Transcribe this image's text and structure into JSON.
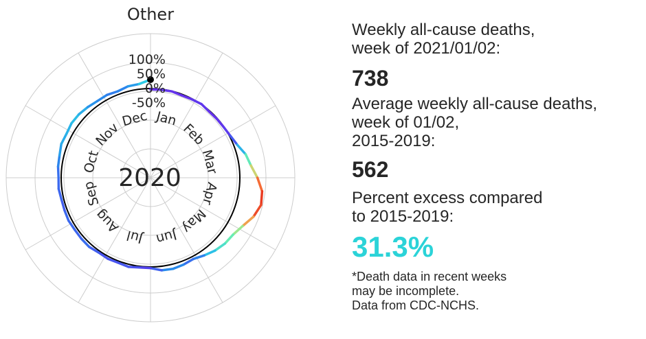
{
  "chart_data": {
    "type": "line",
    "projection": "polar",
    "title": "Other",
    "center_label": "2020",
    "radial_tick_labels": [
      "100%",
      "50%",
      "0%",
      "-50%"
    ],
    "radial_ticks": [
      100,
      50,
      0,
      -50
    ],
    "radial_range": [
      -150,
      150
    ],
    "month_labels": [
      "Jan",
      "Feb",
      "Mar",
      "Apr",
      "May",
      "Jun",
      "Jul",
      "Aug",
      "Sep",
      "Oct",
      "Nov",
      "Dec"
    ],
    "reference_circle": 0,
    "colormap": "rainbow/jet (purple low, cyan mid, red high)",
    "grid": true,
    "series": [
      {
        "x": [
          1,
          2,
          3,
          4,
          5,
          6,
          7,
          8,
          9,
          10,
          11,
          12,
          13,
          14,
          15,
          16,
          17,
          18,
          19,
          20,
          21,
          22,
          23,
          24,
          25,
          26,
          27,
          28,
          29,
          30,
          31,
          32,
          33,
          34,
          35,
          36,
          37,
          38,
          39,
          40,
          41,
          42,
          43,
          44,
          45,
          46,
          47,
          48,
          49,
          50,
          51,
          52,
          53
        ],
        "values": [
          -3,
          -2,
          -1,
          -4,
          -2,
          1,
          -3,
          -2,
          -1,
          3,
          12,
          30,
          41,
          61,
          80,
          85,
          72,
          51,
          38,
          35,
          28,
          18,
          9,
          13,
          16,
          14,
          4,
          4,
          9,
          6,
          8,
          6,
          11,
          10,
          9,
          11,
          9,
          8,
          11,
          9,
          13,
          15,
          21,
          19,
          23,
          22,
          18,
          14,
          15,
          11,
          17,
          18,
          31
        ]
      }
    ]
  },
  "panel": {
    "weekly_label": "Weekly all-cause deaths,\nweek of 2021/01/02:",
    "weekly_value": "738",
    "average_label": "Average weekly all-cause deaths,\nweek of 01/02,\n2015-2019:",
    "average_value": "562",
    "excess_label": "Percent excess compared\nto 2015-2019:",
    "excess_value": "31.3%",
    "excess_color": "#2bd3d8",
    "note": "*Death data in recent weeks\nmay be incomplete.\nData from CDC-NCHS."
  }
}
